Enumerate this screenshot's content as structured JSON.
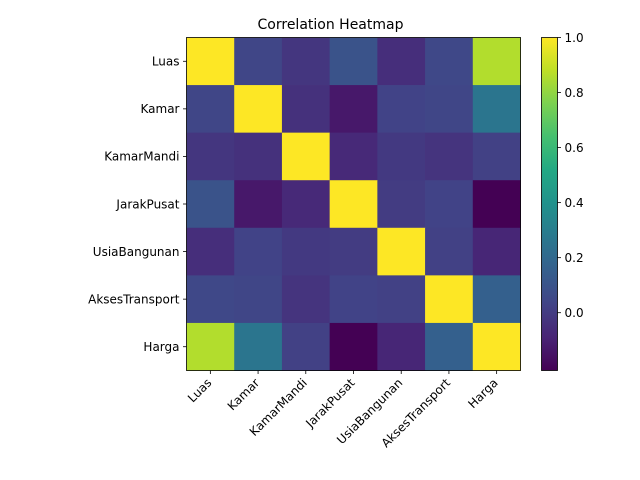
{
  "chart_data": {
    "type": "heatmap",
    "title": "Correlation Heatmap",
    "xlabel": "",
    "ylabel": "",
    "labels": [
      "Luas",
      "Kamar",
      "KamarMandi",
      "JarakPusat",
      "UsiaBangunan",
      "AksesTransport",
      "Harga"
    ],
    "matrix": [
      [
        1.0,
        0.04,
        -0.02,
        0.1,
        -0.05,
        0.05,
        0.86
      ],
      [
        0.04,
        1.0,
        -0.04,
        -0.13,
        0.03,
        0.04,
        0.26
      ],
      [
        -0.02,
        -0.04,
        1.0,
        -0.07,
        -0.01,
        -0.03,
        0.02
      ],
      [
        0.1,
        -0.13,
        -0.07,
        1.0,
        0.0,
        0.03,
        -0.21
      ],
      [
        -0.05,
        0.03,
        -0.01,
        0.0,
        1.0,
        0.02,
        -0.08
      ],
      [
        0.05,
        0.04,
        -0.03,
        0.03,
        0.02,
        1.0,
        0.16
      ],
      [
        0.86,
        0.26,
        0.02,
        -0.21,
        -0.08,
        0.16,
        1.0
      ]
    ],
    "colormap": "viridis",
    "vmin": -0.21,
    "vmax": 1.0,
    "colorbar_ticks": [
      0.0,
      0.2,
      0.4,
      0.6,
      0.8,
      1.0
    ],
    "colorbar_tick_labels": [
      "0.0",
      "0.2",
      "0.4",
      "0.6",
      "0.8",
      "1.0"
    ]
  }
}
